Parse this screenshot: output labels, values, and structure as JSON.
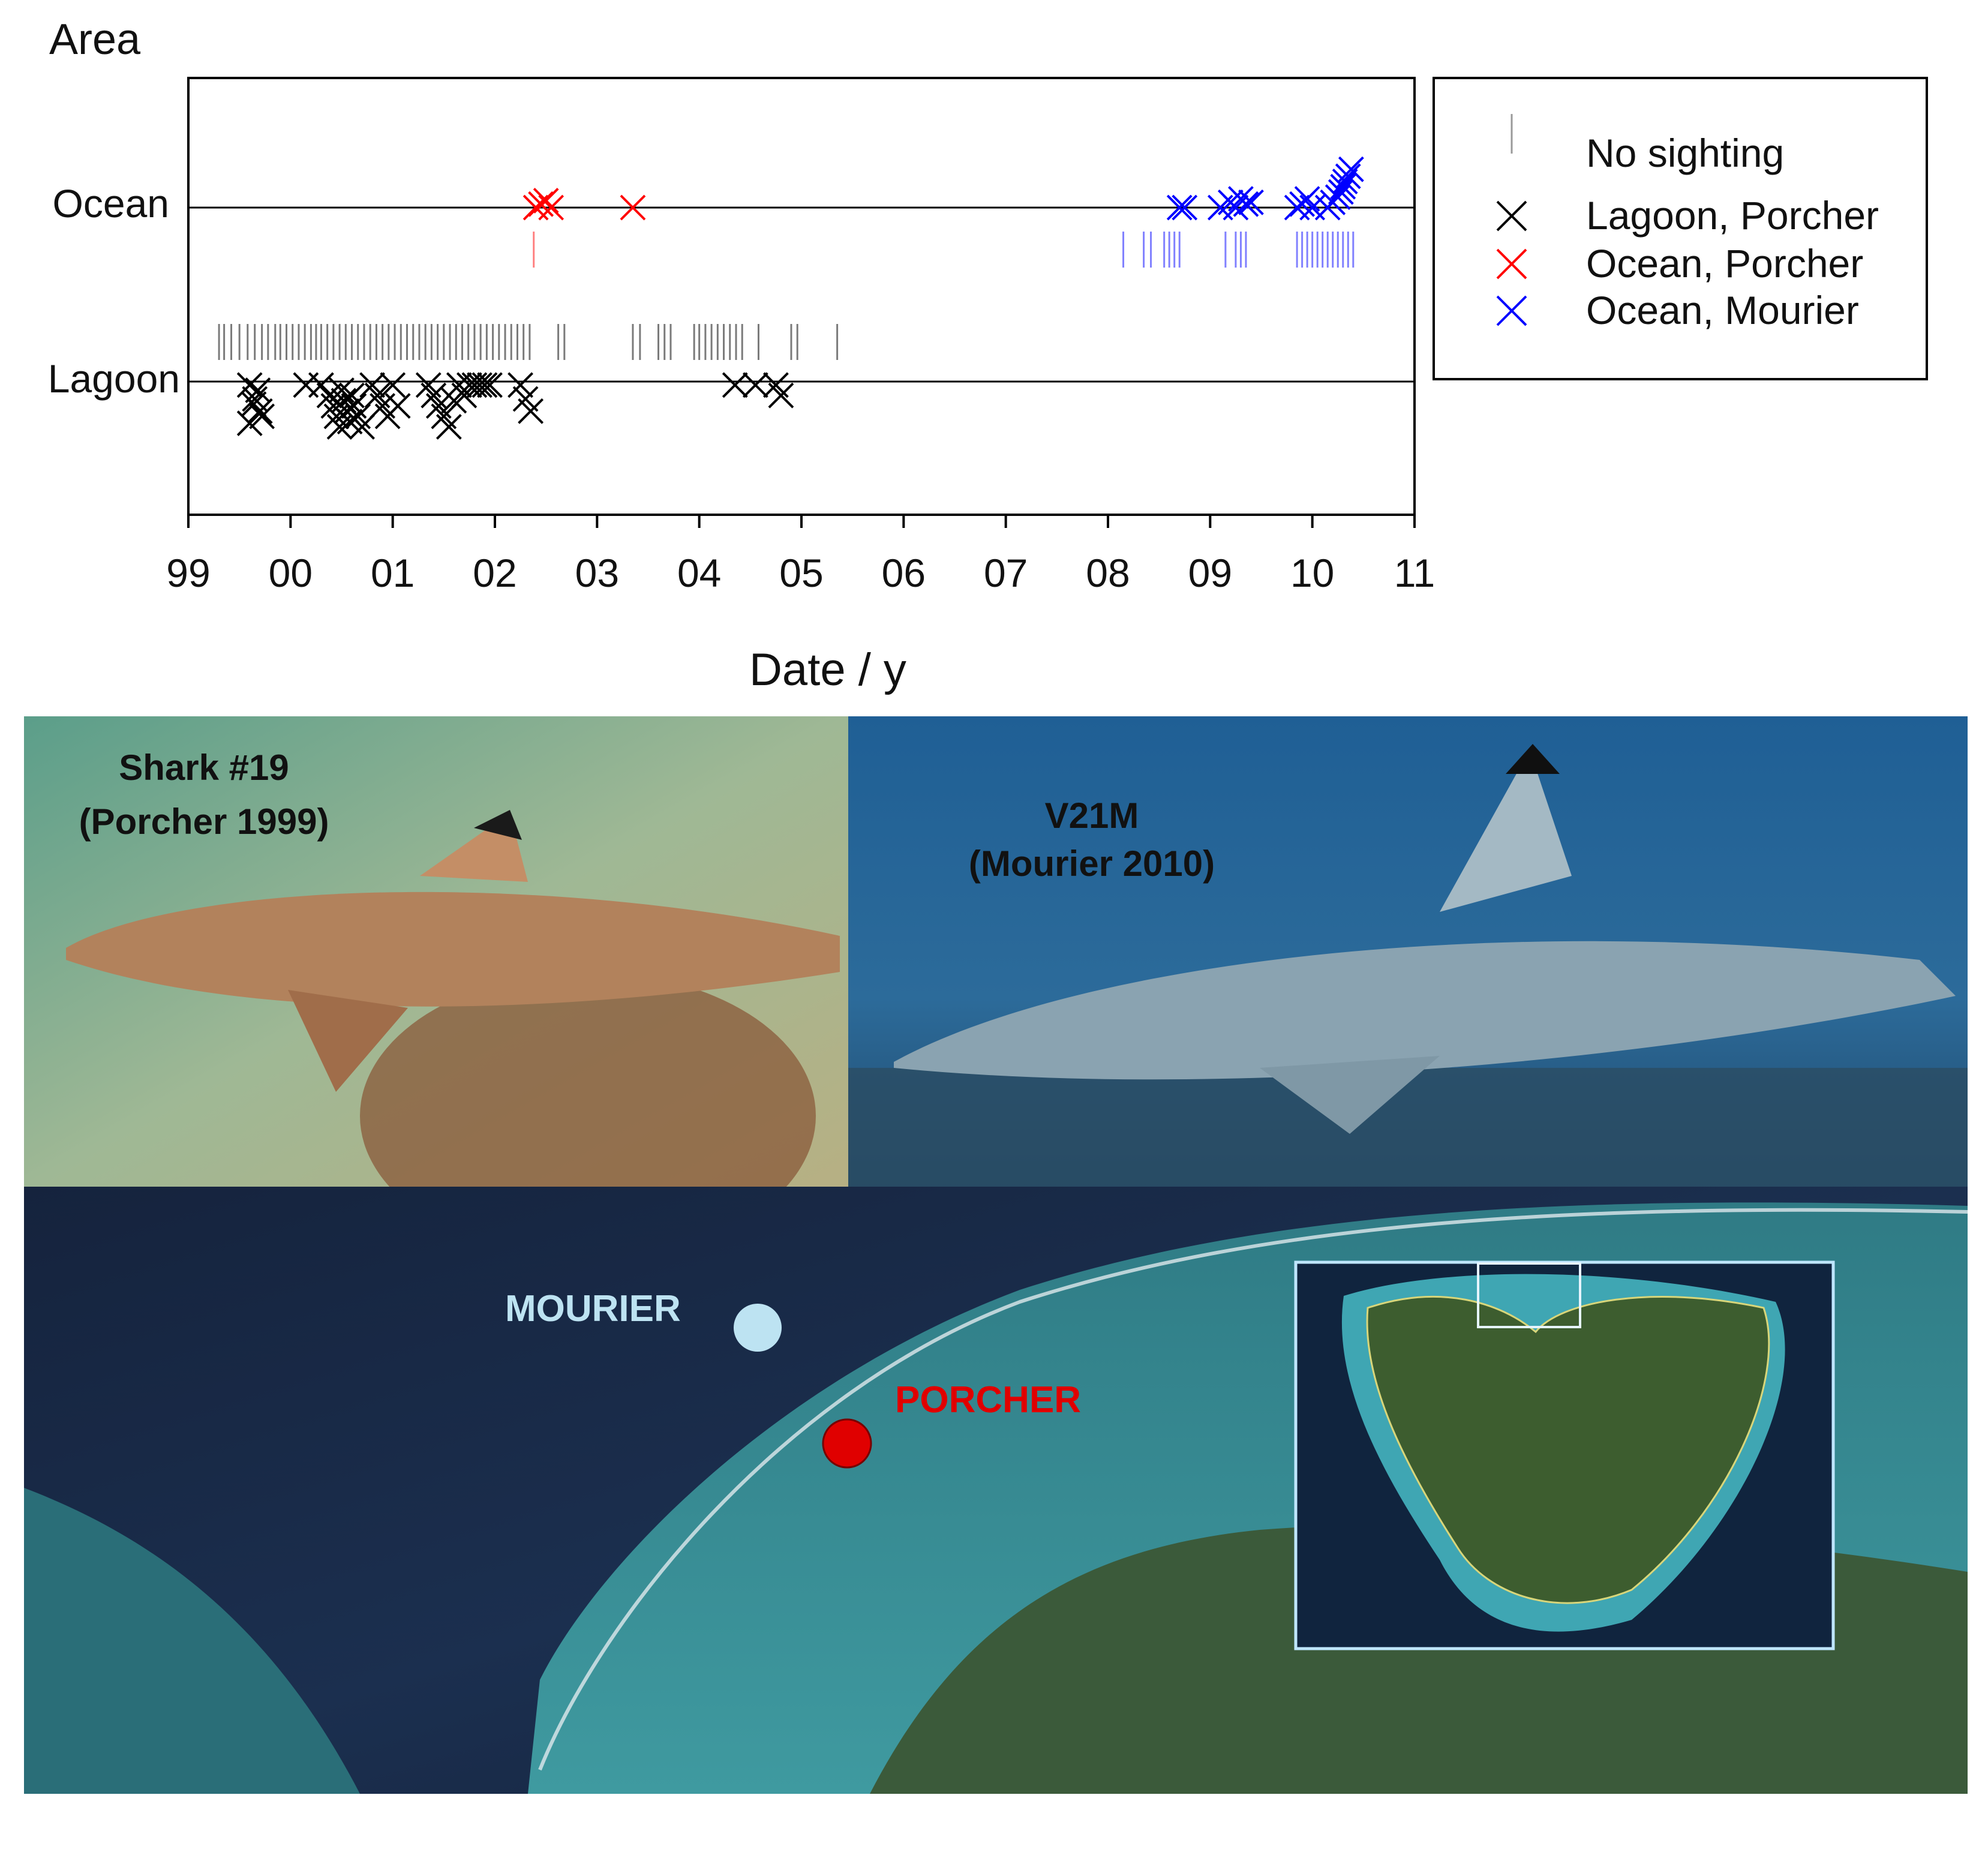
{
  "chart_data": {
    "type": "scatter",
    "ylabel": "Area",
    "xlabel": "Date / y",
    "x_tick_labels": [
      "99",
      "00",
      "01",
      "02",
      "03",
      "04",
      "05",
      "06",
      "07",
      "08",
      "09",
      "10",
      "11"
    ],
    "y_categories": [
      "Lagoon",
      "Ocean"
    ],
    "xlim": [
      1999,
      2011
    ],
    "legend_position": "top-right-outside",
    "series": [
      {
        "name": "Lagoon, Porcher",
        "color": "#000000",
        "marker": "x",
        "category": "Lagoon",
        "x": [
          1999.6,
          1999.65,
          1999.7,
          1999.6,
          1999.68,
          1999.72,
          1999.64,
          2000.15,
          2000.3,
          2000.38,
          2000.42,
          2000.45,
          2000.48,
          2000.5,
          2000.52,
          2000.55,
          2000.58,
          2000.6,
          2000.62,
          2000.66,
          2000.7,
          2000.8,
          2000.85,
          2000.9,
          2000.95,
          2001.0,
          2001.05,
          2001.35,
          2001.4,
          2001.45,
          2001.5,
          2001.55,
          2001.6,
          2001.65,
          2001.7,
          2001.75,
          2001.8,
          2001.85,
          2001.9,
          2001.95,
          2002.25,
          2002.3,
          2002.35,
          2004.35,
          2004.55,
          2004.75,
          2004.8
        ],
        "offset": [
          0.02,
          0.1,
          0.17,
          0.24,
          0.05,
          0.2,
          0.13,
          0.02,
          0.02,
          0.08,
          0.14,
          0.2,
          0.26,
          0.05,
          0.11,
          0.17,
          0.23,
          0.08,
          0.14,
          0.2,
          0.26,
          0.02,
          0.08,
          0.14,
          0.2,
          0.02,
          0.14,
          0.02,
          0.08,
          0.14,
          0.2,
          0.26,
          0.11,
          0.02,
          0.08,
          0.02,
          0.02,
          0.02,
          0.02,
          0.02,
          0.02,
          0.1,
          0.17,
          0.02,
          0.02,
          0.02,
          0.08
        ]
      },
      {
        "name": "Ocean, Porcher",
        "color": "#ff0000",
        "marker": "x",
        "category": "Ocean",
        "x": [
          2002.4,
          2002.45,
          2002.5,
          2002.55,
          2003.35
        ],
        "offset": [
          0,
          0.02,
          0.04,
          0,
          0
        ]
      },
      {
        "name": "Ocean, Mourier",
        "color": "#0000ff",
        "marker": "x",
        "category": "Ocean",
        "x": [
          2008.7,
          2008.75,
          2009.1,
          2009.2,
          2009.25,
          2009.3,
          2009.35,
          2009.4,
          2009.85,
          2009.9,
          2009.95,
          2010.0,
          2010.15,
          2010.2,
          2010.25,
          2010.28,
          2010.3,
          2010.32,
          2010.35,
          2010.38
        ],
        "offset": [
          0,
          0,
          0,
          0.03,
          0,
          0.05,
          0.02,
          0.03,
          0,
          0.02,
          0.05,
          0,
          0,
          0.03,
          0.06,
          0.09,
          0.12,
          0.15,
          0.18,
          0.22
        ]
      }
    ],
    "no_sighting": {
      "name": "No sighting",
      "lagoon_x": [
        1999.3,
        1999.35,
        1999.42,
        1999.5,
        1999.58,
        1999.65,
        1999.72,
        1999.78,
        1999.85,
        1999.9,
        1999.96,
        2000.02,
        2000.08,
        2000.14,
        2000.2,
        2000.25,
        2000.3,
        2000.36,
        2000.42,
        2000.48,
        2000.54,
        2000.6,
        2000.66,
        2000.72,
        2000.78,
        2000.84,
        2000.9,
        2000.96,
        2001.02,
        2001.08,
        2001.14,
        2001.2,
        2001.26,
        2001.32,
        2001.38,
        2001.44,
        2001.5,
        2001.56,
        2001.62,
        2001.68,
        2001.74,
        2001.8,
        2001.86,
        2001.92,
        2001.98,
        2002.04,
        2002.1,
        2002.16,
        2002.22,
        2002.28,
        2002.34,
        2002.62,
        2002.68,
        2003.35,
        2003.42,
        2003.6,
        2003.66,
        2003.72,
        2003.95,
        2004.0,
        2004.06,
        2004.12,
        2004.18,
        2004.24,
        2004.3,
        2004.36,
        2004.42,
        2004.58,
        2004.9,
        2004.96,
        2005.35
      ],
      "ocean_x": [
        2002.38,
        2008.15,
        2008.35,
        2008.42,
        2008.55,
        2008.6,
        2008.65,
        2008.7,
        2009.15,
        2009.25,
        2009.3,
        2009.35,
        2009.85,
        2009.9,
        2009.95,
        2010.0,
        2010.05,
        2010.1,
        2010.15,
        2010.2,
        2010.25,
        2010.3,
        2010.35,
        2010.4
      ],
      "lagoon_color": "#7a7a7a",
      "ocean_colors": {
        "2002.38": "#ff8080",
        "other": "#8080ff"
      }
    }
  },
  "photos": {
    "left_label_line1": "Shark #19",
    "left_label_line2": "(Porcher 1999)",
    "right_label_line1": "V21M",
    "right_label_line2": "(Mourier 2010)"
  },
  "map": {
    "site_mourier": "MOURIER",
    "site_porcher": "PORCHER",
    "mourier_color": "#bde3f2",
    "porcher_color": "#e00000"
  }
}
